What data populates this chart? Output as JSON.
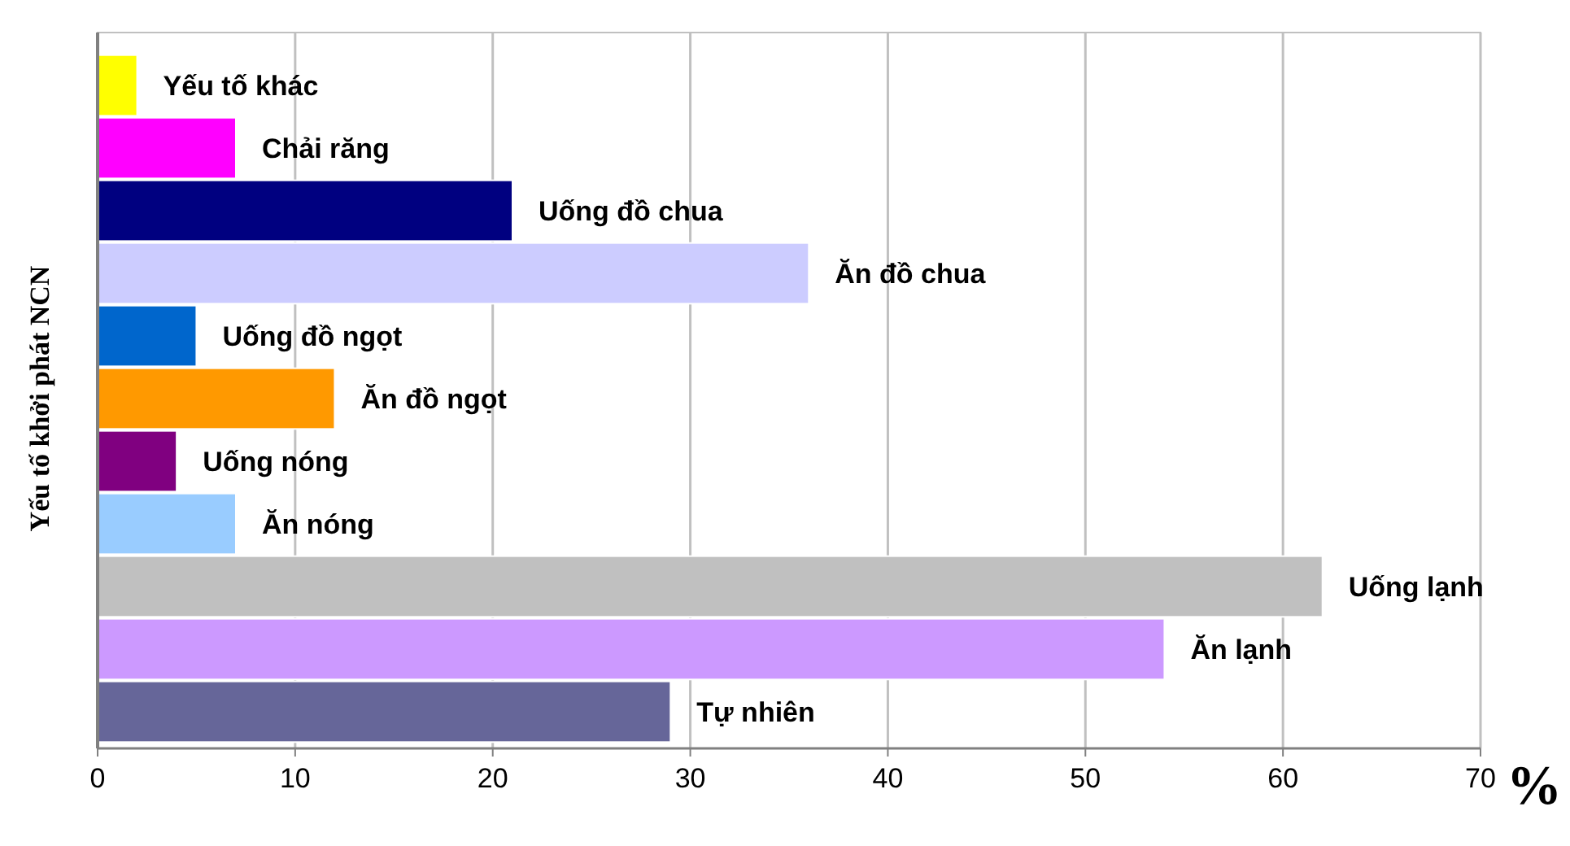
{
  "chart_data": {
    "type": "bar",
    "orientation": "horizontal",
    "ylabel": "Yếu tố khởi phát NCN",
    "xlabel": "%",
    "categories": [
      "Yếu tố khác",
      "Chải răng",
      "Uống đồ chua",
      "Ăn đồ chua",
      "Uống đồ ngọt",
      "Ăn đồ ngọt",
      "Uống nóng",
      "Ăn nóng",
      "Uống lạnh",
      "Ăn lạnh",
      "Tự nhiên"
    ],
    "values": [
      2,
      7,
      21,
      36,
      5,
      12,
      4,
      7,
      62,
      54,
      29
    ],
    "colors": [
      "#ffff00",
      "#ff00ff",
      "#000080",
      "#ccccff",
      "#0066cc",
      "#ff9900",
      "#800080",
      "#99ccff",
      "#c0c0c0",
      "#cc99ff",
      "#666699"
    ],
    "xlim": [
      0,
      70
    ],
    "xticks": [
      0,
      10,
      20,
      30,
      40,
      50,
      60,
      70
    ],
    "grid": "x"
  }
}
